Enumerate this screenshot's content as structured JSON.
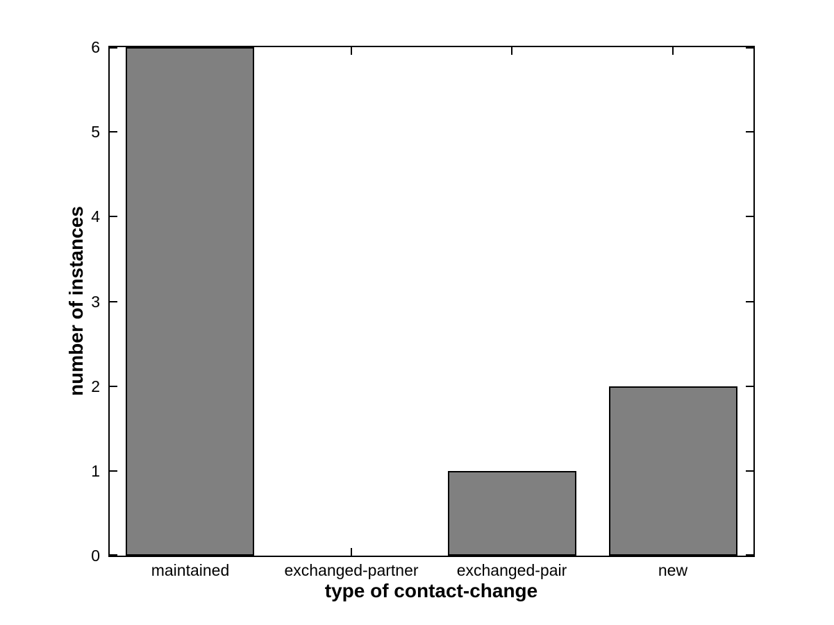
{
  "chart_data": {
    "type": "bar",
    "categories": [
      "maintained",
      "exchanged-partner",
      "exchanged-pair",
      "new"
    ],
    "values": [
      6,
      0,
      1,
      2
    ],
    "xlabel": "type of contact-change",
    "ylabel": "number of instances",
    "ylim": [
      0,
      6
    ],
    "yticks": [
      0,
      1,
      2,
      3,
      4,
      5,
      6
    ],
    "grid": false,
    "legend": null,
    "bar_width_fraction": 0.8,
    "tick_style": "inward-mirrored-box",
    "colors": {
      "bar_fill": "#808080",
      "bar_edge": "#000000",
      "axis": "#000000",
      "text": "#000000",
      "background": "#ffffff"
    }
  }
}
